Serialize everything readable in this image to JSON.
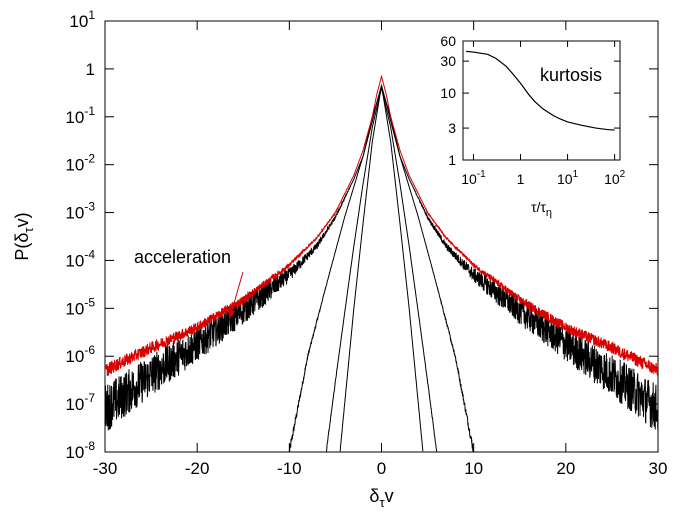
{
  "chart_data": [
    {
      "type": "line",
      "title": "",
      "xlabel": {
        "main": "δ",
        "sub": "τ",
        "tail": "v"
      },
      "ylabel": {
        "lead": "P(δ",
        "sub": "τ",
        "tail": "v)"
      },
      "x_range": [
        -30,
        30
      ],
      "y_range_log10": [
        -8,
        1
      ],
      "y_scale": "log",
      "grid": false,
      "x_ticks": [
        {
          "value": -30,
          "label": "-30"
        },
        {
          "value": -20,
          "label": "-20"
        },
        {
          "value": -10,
          "label": "-10"
        },
        {
          "value": 0,
          "label": "0"
        },
        {
          "value": 10,
          "label": "10"
        },
        {
          "value": 20,
          "label": "20"
        },
        {
          "value": 30,
          "label": "30"
        }
      ],
      "y_ticks": [
        {
          "exp": 1,
          "base": "10",
          "sup": "1"
        },
        {
          "exp": 0,
          "base": "1",
          "sup": ""
        },
        {
          "exp": -1,
          "base": "10",
          "sup": "-1"
        },
        {
          "exp": -2,
          "base": "10",
          "sup": "-2"
        },
        {
          "exp": -3,
          "base": "10",
          "sup": "-3"
        },
        {
          "exp": -4,
          "base": "10",
          "sup": "-4"
        },
        {
          "exp": -5,
          "base": "10",
          "sup": "-5"
        },
        {
          "exp": -6,
          "base": "10",
          "sup": "-6"
        },
        {
          "exp": -7,
          "base": "10",
          "sup": "-7"
        },
        {
          "exp": -8,
          "base": "10",
          "sup": "-8"
        }
      ],
      "series": [
        {
          "color": "#d90000",
          "noise": 0.06,
          "x": [
            -30,
            -25,
            -20,
            -15,
            -10,
            -7,
            -5,
            -3,
            -2,
            -1,
            -0.5,
            0,
            0.5,
            1,
            2,
            3,
            5,
            7,
            10,
            15,
            20,
            25,
            30
          ],
          "y": [
            5e-07,
            1.5e-06,
            4e-06,
            1.5e-05,
            8e-05,
            0.0003,
            0.001,
            0.006,
            0.02,
            0.1,
            0.3,
            0.7,
            0.3,
            0.1,
            0.02,
            0.006,
            0.001,
            0.0003,
            8e-05,
            1.5e-05,
            4e-06,
            1.5e-06,
            5e-07
          ]
        },
        {
          "color": "#000000",
          "noise": 0.18,
          "x": [
            -30,
            -25,
            -20,
            -15,
            -10,
            -7,
            -5,
            -3,
            -2,
            -1,
            -0.5,
            0,
            0.5,
            1,
            2,
            3,
            5,
            7,
            10,
            15,
            20,
            25,
            30
          ],
          "y": [
            8e-08,
            4e-07,
            1.8e-06,
            9e-06,
            5e-05,
            0.0002,
            0.0008,
            0.005,
            0.015,
            0.08,
            0.2,
            0.45,
            0.2,
            0.08,
            0.015,
            0.005,
            0.0008,
            0.0002,
            5e-05,
            9e-06,
            1.8e-06,
            4e-07,
            8e-08
          ]
        },
        {
          "color": "#000000",
          "noise": 0.04,
          "x": [
            -10,
            -8,
            -6,
            -4,
            -2,
            -1,
            0,
            1,
            2,
            4,
            6,
            8,
            10
          ],
          "y": [
            1e-08,
            1e-06,
            3e-05,
            0.0008,
            0.015,
            0.1,
            0.4,
            0.1,
            0.015,
            0.0008,
            3e-05,
            1e-06,
            1e-08
          ]
        },
        {
          "color": "#000000",
          "noise": 0.04,
          "x": [
            -6,
            -5,
            -4,
            -3,
            -2,
            -1,
            0,
            1,
            2,
            3,
            4,
            5,
            6
          ],
          "y": [
            1e-08,
            3e-07,
            8e-06,
            0.0002,
            0.004,
            0.06,
            0.4,
            0.06,
            0.004,
            0.0002,
            8e-06,
            3e-07,
            1e-08
          ]
        },
        {
          "color": "#000000",
          "noise": 0.04,
          "x": [
            -4.5,
            -4,
            -3,
            -2,
            -1,
            0,
            1,
            2,
            3,
            4,
            4.5
          ],
          "y": [
            1e-08,
            1e-07,
            1e-05,
            0.0006,
            0.03,
            0.45,
            0.03,
            0.0006,
            1e-05,
            1e-07,
            1e-08
          ]
        }
      ],
      "annotations": [
        {
          "text": "acceleration",
          "arrow_to": {
            "x": -16.5,
            "y": 6e-06
          }
        }
      ]
    },
    {
      "type": "line",
      "title": "",
      "xlabel": {
        "main": "τ/τ",
        "sub": "η"
      },
      "ylabel": "",
      "x_scale": "log",
      "y_scale": "log",
      "x_range": [
        0.06,
        130
      ],
      "y_range": [
        1,
        60
      ],
      "x_ticks": [
        {
          "value": 0.1,
          "base": "10",
          "sup": "-1"
        },
        {
          "value": 1,
          "base": "1",
          "sup": ""
        },
        {
          "value": 10,
          "base": "10",
          "sup": "1"
        },
        {
          "value": 100,
          "base": "10",
          "sup": "2"
        }
      ],
      "y_ticks": [
        {
          "value": 1,
          "label": "1"
        },
        {
          "value": 3,
          "label": "3"
        },
        {
          "value": 10,
          "label": "10"
        },
        {
          "value": 30,
          "label": "30"
        },
        {
          "value": 60,
          "label": "60"
        }
      ],
      "legend_text": "kurtosis",
      "series": [
        {
          "name": "kurtosis",
          "color": "#000000",
          "x": [
            0.07,
            0.1,
            0.2,
            0.3,
            0.5,
            0.7,
            1,
            1.5,
            2,
            3,
            5,
            7,
            10,
            20,
            40,
            70,
            100
          ],
          "y": [
            42,
            41,
            38,
            33,
            25,
            19,
            14,
            9.5,
            7.5,
            5.8,
            4.6,
            4.1,
            3.7,
            3.3,
            3.0,
            2.85,
            2.8
          ]
        }
      ]
    }
  ]
}
